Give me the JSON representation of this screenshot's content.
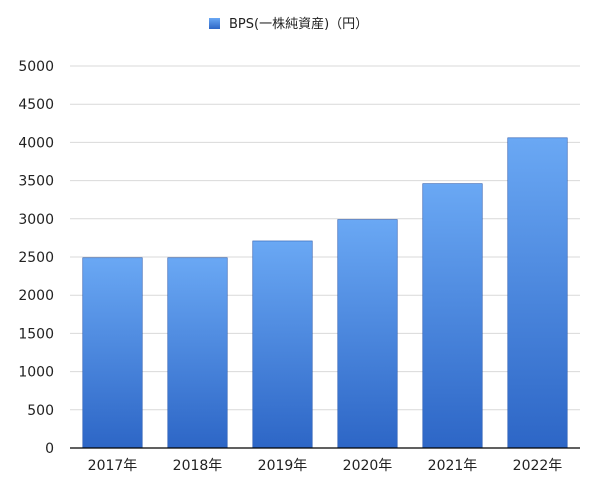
{
  "chart_data": {
    "type": "bar",
    "title": "",
    "xlabel": "",
    "ylabel": "",
    "categories": [
      "2017年",
      "2018年",
      "2019年",
      "2020年",
      "2021年",
      "2022年"
    ],
    "series": [
      {
        "name": "BPS(一株純資産)（円）",
        "values": [
          2490,
          2490,
          2710,
          2990,
          3460,
          4060
        ]
      }
    ],
    "ylim": [
      0,
      5000
    ],
    "yticks": [
      0,
      500,
      1000,
      1500,
      2000,
      2500,
      3000,
      3500,
      4000,
      4500,
      5000
    ],
    "grid": true,
    "legend_position": "top-center",
    "colors": {
      "bar_top": "#6aa8f4",
      "bar_bottom": "#2d66c6",
      "bar_edge": "#2a5bb0",
      "grid": "#d9d9d9",
      "axis": "#000000"
    }
  }
}
